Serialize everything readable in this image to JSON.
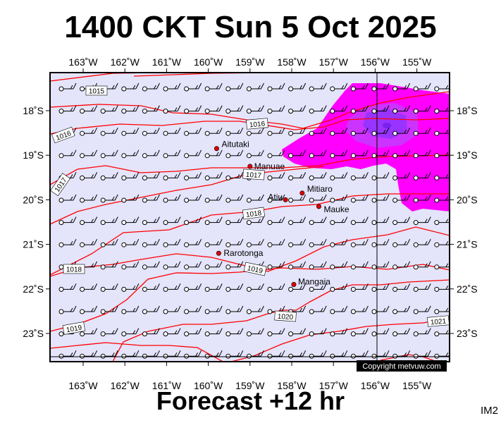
{
  "title": "1400 CKT Sun 5 Oct 2025",
  "footer": "Forecast +12 hr",
  "code": "IM2",
  "copyright": "Copyright metvuw.com",
  "colors": {
    "sea": "#e4e4fb",
    "isobar": "#ff0000",
    "rain_light": "#ff00ff",
    "rain_mid": "#cc33ff",
    "rain_heavy": "#9933ff"
  },
  "lon_ticks": [
    "163˚W",
    "162˚W",
    "161˚W",
    "160˚W",
    "159˚W",
    "158˚W",
    "157˚W",
    "156˚W",
    "155˚W"
  ],
  "lat_ticks": [
    "18˚S",
    "19˚S",
    "20˚S",
    "21˚S",
    "22˚S",
    "23˚S"
  ],
  "places": [
    {
      "name": "Aitutaki",
      "lon": -159.8,
      "lat": -18.85
    },
    {
      "name": "Manuae",
      "lon": -159.0,
      "lat": -19.25
    },
    {
      "name": "Mitiaro",
      "lon": -157.75,
      "lat": -19.85
    },
    {
      "name": "Atiu",
      "lon": -158.15,
      "lat": -20.0
    },
    {
      "name": "Mauke",
      "lon": -157.35,
      "lat": -20.15
    },
    {
      "name": "Rarotonga",
      "lon": -159.75,
      "lat": -21.2
    },
    {
      "name": "Mangaia",
      "lon": -157.95,
      "lat": -21.9
    }
  ],
  "isobar_labels": [
    "1015",
    "1016",
    "1016",
    "1017",
    "1017",
    "1018",
    "1018",
    "1019",
    "1019",
    "1020",
    "1021"
  ]
}
